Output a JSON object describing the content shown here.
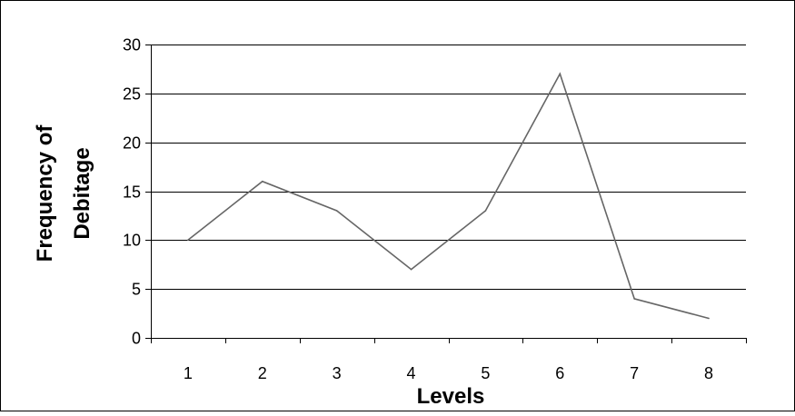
{
  "chart_data": {
    "type": "line",
    "title": "",
    "xlabel": "Levels",
    "ylabel_lines": [
      "Frequency of",
      "Debitage"
    ],
    "categories": [
      "1",
      "2",
      "3",
      "4",
      "5",
      "6",
      "7",
      "8"
    ],
    "series": [
      {
        "values": [
          10,
          16,
          13,
          7,
          13,
          27,
          4,
          2
        ]
      }
    ],
    "ylim": [
      0,
      30
    ],
    "yticks": [
      "0",
      "5",
      "10",
      "15",
      "20",
      "25",
      "30"
    ],
    "grid": true,
    "legend": "none",
    "line_color": "#666666",
    "grid_color": "#000000"
  }
}
